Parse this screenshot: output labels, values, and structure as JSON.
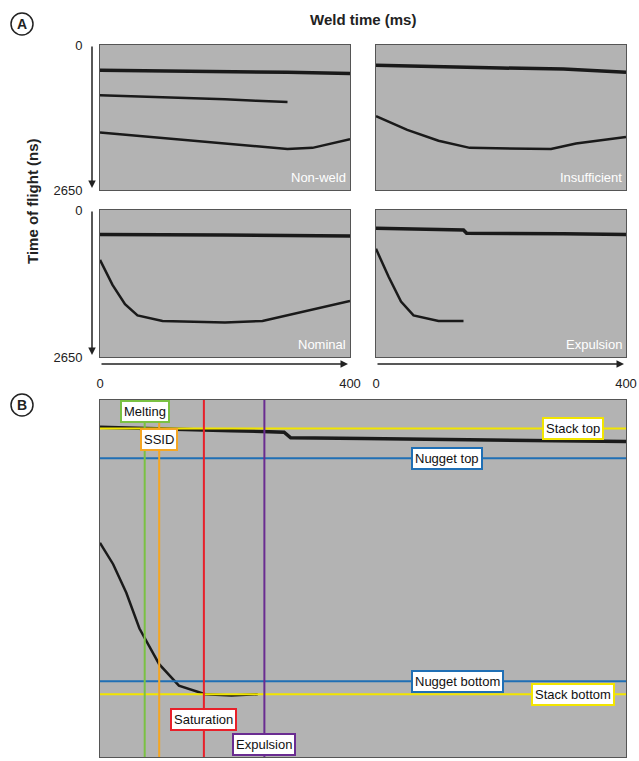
{
  "x_title": "Weld time (ms)",
  "y_title": "Time of flight (ns)",
  "chart_data": [
    {
      "panel": "A",
      "type": "line",
      "label": "Non-weld",
      "xlim": [
        0,
        400
      ],
      "ylim": [
        2650,
        0
      ],
      "yticks": [
        0,
        2650
      ],
      "tick_labels": "y",
      "color": "#1a1a1a",
      "series": [
        {
          "x": [
            0,
            100,
            200,
            300,
            400
          ],
          "values": [
            460,
            470,
            480,
            500,
            520
          ]
        },
        {
          "x": [
            0,
            100,
            200,
            250,
            300
          ],
          "values": [
            920,
            950,
            990,
            1020,
            1040
          ]
        },
        {
          "x": [
            0,
            100,
            200,
            300,
            340,
            400
          ],
          "values": [
            1600,
            1700,
            1800,
            1900,
            1880,
            1720
          ]
        }
      ]
    },
    {
      "panel": "A",
      "type": "line",
      "label": "Insufficient",
      "xlim": [
        0,
        400
      ],
      "ylim": [
        2650,
        0
      ],
      "tick_labels": false,
      "color": "#1a1a1a",
      "series": [
        {
          "x": [
            0,
            100,
            200,
            300,
            400
          ],
          "values": [
            370,
            400,
            420,
            440,
            500
          ]
        },
        {
          "x": [
            0,
            50,
            100,
            150,
            280,
            320,
            400
          ],
          "values": [
            1300,
            1550,
            1750,
            1880,
            1900,
            1800,
            1680
          ]
        }
      ]
    },
    {
      "panel": "A",
      "type": "line",
      "label": "Nominal",
      "xlim": [
        0,
        400
      ],
      "ylim": [
        2650,
        0
      ],
      "xticks": [
        0,
        400
      ],
      "yticks": [
        0,
        2650
      ],
      "tick_labels": true,
      "color": "#1a1a1a",
      "series": [
        {
          "x": [
            0,
            100,
            200,
            300,
            400
          ],
          "values": [
            440,
            440,
            450,
            460,
            470
          ]
        },
        {
          "x": [
            0,
            20,
            40,
            60,
            100,
            200,
            260,
            320,
            400
          ],
          "values": [
            900,
            1350,
            1700,
            1900,
            2000,
            2030,
            2000,
            1850,
            1640
          ]
        }
      ]
    },
    {
      "panel": "A",
      "type": "line",
      "label": "Expulsion",
      "xlim": [
        0,
        400
      ],
      "ylim": [
        2650,
        0
      ],
      "xticks": [
        0,
        400
      ],
      "tick_labels": "x",
      "color": "#1a1a1a",
      "series": [
        {
          "x": [
            0,
            100,
            140,
            145,
            200,
            300,
            400
          ],
          "values": [
            330,
            350,
            360,
            420,
            420,
            430,
            440
          ]
        },
        {
          "x": [
            0,
            20,
            40,
            60,
            100,
            140
          ],
          "values": [
            700,
            1200,
            1650,
            1900,
            2000,
            2000
          ]
        }
      ]
    },
    {
      "panel": "B",
      "type": "line",
      "xlim": [
        0,
        400
      ],
      "ylim": [
        2500,
        0
      ],
      "tick_labels": false,
      "color": "#1a1a1a",
      "series": [
        {
          "x": [
            0,
            50,
            100,
            140,
            145,
            200,
            300,
            400
          ],
          "values": [
            190,
            200,
            215,
            225,
            265,
            270,
            280,
            290
          ]
        },
        {
          "x": [
            0,
            10,
            20,
            30,
            45,
            60,
            80,
            100,
            120
          ],
          "values": [
            1000,
            1150,
            1350,
            1600,
            1850,
            2000,
            2060,
            2070,
            2060
          ]
        }
      ],
      "vlines": [
        {
          "label": "Melting",
          "x": 34,
          "color": "#7ac143"
        },
        {
          "label": "SSID",
          "x": 45,
          "color": "#f5a623"
        },
        {
          "label": "Saturation",
          "x": 79,
          "color": "#e8202a"
        },
        {
          "label": "Expulsion",
          "x": 125,
          "color": "#6a2c91"
        }
      ],
      "hlines": [
        {
          "label": "Stack top",
          "y": 200,
          "color": "#f2e500"
        },
        {
          "label": "Nugget top",
          "y": 408,
          "color": "#1f6fb5"
        },
        {
          "label": "Nugget bottom",
          "y": 1970,
          "color": "#1f6fb5"
        },
        {
          "label": "Stack bottom",
          "y": 2060,
          "color": "#f2e500"
        }
      ]
    }
  ]
}
